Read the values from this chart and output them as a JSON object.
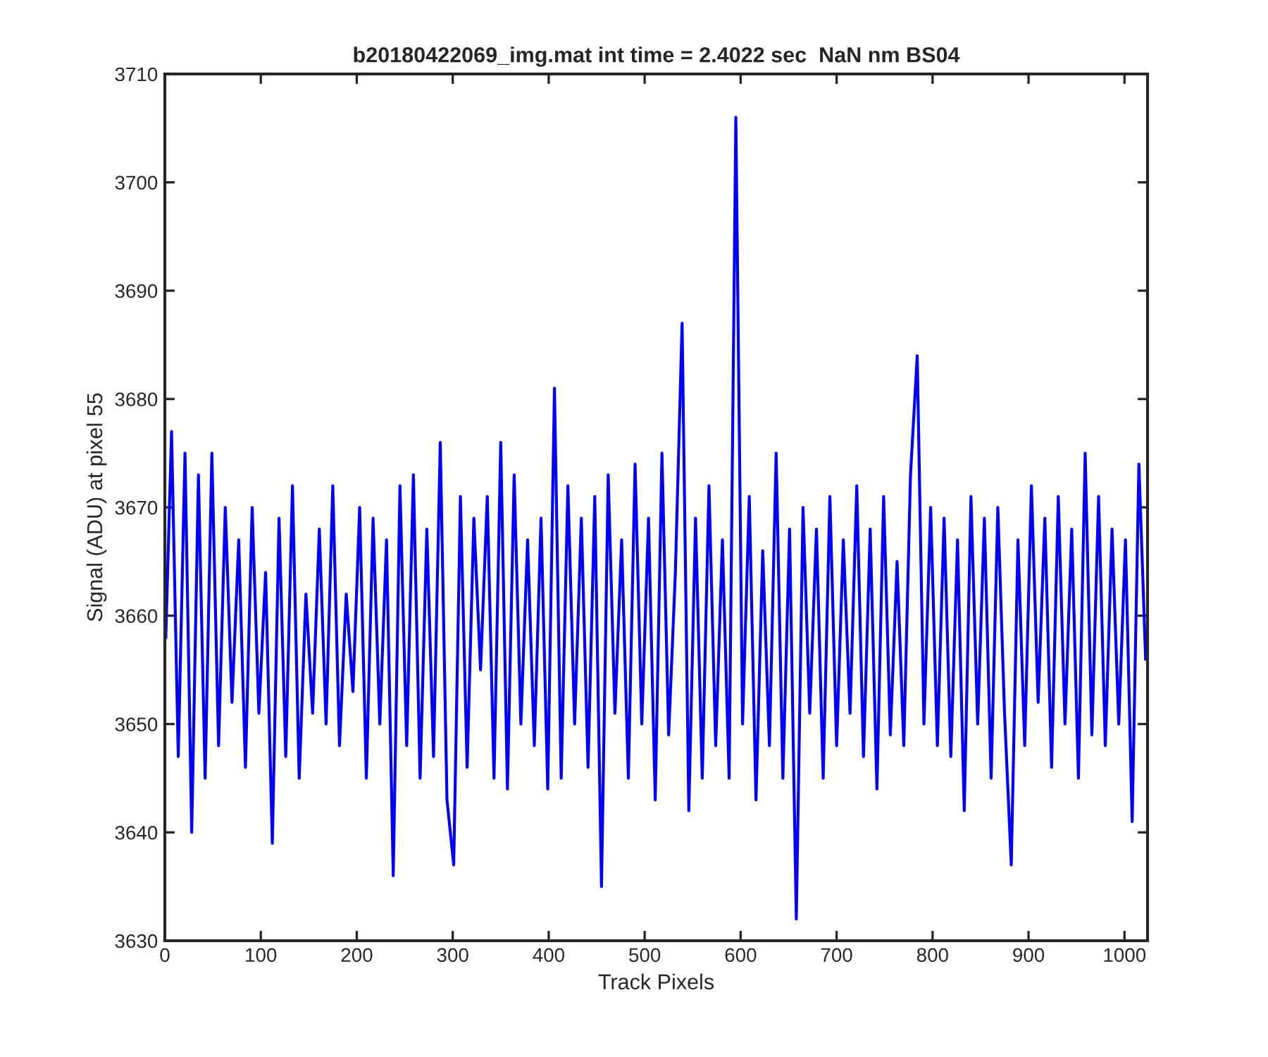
{
  "chart_data": {
    "type": "line",
    "title": "b20180422069_img.mat int time = 2.4022 sec  NaN nm BS04",
    "xlabel": "Track Pixels",
    "ylabel": "Signal (ADU) at pixel 55",
    "x": [
      1,
      7,
      14,
      21,
      28,
      35,
      42,
      49,
      56,
      63,
      70,
      77,
      84,
      91,
      98,
      105,
      112,
      119,
      126,
      133,
      140,
      147,
      154,
      161,
      168,
      175,
      182,
      189,
      196,
      203,
      210,
      217,
      224,
      231,
      238,
      245,
      252,
      259,
      266,
      273,
      280,
      287,
      294,
      301,
      308,
      315,
      322,
      329,
      336,
      343,
      350,
      357,
      364,
      371,
      378,
      385,
      392,
      399,
      406,
      413,
      420,
      427,
      434,
      441,
      448,
      455,
      462,
      469,
      476,
      483,
      490,
      497,
      504,
      511,
      518,
      525,
      532,
      539,
      546,
      553,
      560,
      567,
      574,
      581,
      588,
      595,
      602,
      609,
      616,
      623,
      630,
      637,
      644,
      651,
      658,
      665,
      672,
      679,
      686,
      693,
      700,
      707,
      714,
      721,
      728,
      735,
      742,
      749,
      756,
      763,
      770,
      777,
      784,
      791,
      798,
      805,
      812,
      819,
      826,
      833,
      840,
      847,
      854,
      861,
      868,
      875,
      882,
      889,
      896,
      903,
      910,
      917,
      924,
      931,
      938,
      945,
      952,
      959,
      966,
      973,
      980,
      987,
      994,
      1001,
      1008,
      1015,
      1022
    ],
    "series": [
      {
        "color": "#0000ff",
        "values": [
          3658,
          3677,
          3647,
          3675,
          3640,
          3673,
          3645,
          3675,
          3648,
          3670,
          3652,
          3667,
          3646,
          3670,
          3651,
          3664,
          3639,
          3669,
          3647,
          3672,
          3645,
          3662,
          3651,
          3668,
          3650,
          3672,
          3648,
          3662,
          3653,
          3670,
          3645,
          3669,
          3650,
          3667,
          3636,
          3672,
          3648,
          3673,
          3645,
          3668,
          3647,
          3676,
          3643,
          3637,
          3671,
          3646,
          3669,
          3655,
          3671,
          3645,
          3676,
          3644,
          3673,
          3650,
          3667,
          3648,
          3669,
          3644,
          3681,
          3645,
          3672,
          3650,
          3669,
          3646,
          3671,
          3635,
          3673,
          3651,
          3667,
          3645,
          3674,
          3650,
          3669,
          3643,
          3675,
          3649,
          3664,
          3687,
          3642,
          3669,
          3645,
          3672,
          3648,
          3667,
          3645,
          3706,
          3650,
          3671,
          3643,
          3666,
          3648,
          3675,
          3645,
          3668,
          3632,
          3670,
          3651,
          3668,
          3645,
          3671,
          3648,
          3667,
          3651,
          3672,
          3647,
          3668,
          3644,
          3671,
          3649,
          3665,
          3648,
          3673,
          3684,
          3650,
          3670,
          3648,
          3669,
          3647,
          3667,
          3642,
          3671,
          3650,
          3669,
          3645,
          3670,
          3651,
          3637,
          3667,
          3648,
          3672,
          3652,
          3669,
          3646,
          3671,
          3650,
          3668,
          3645,
          3675,
          3649,
          3671,
          3648,
          3668,
          3650,
          3667,
          3641,
          3674,
          3656
        ]
      }
    ],
    "xlim": [
      0,
      1024
    ],
    "ylim": [
      3630,
      3710
    ],
    "xticks": [
      0,
      100,
      200,
      300,
      400,
      500,
      600,
      700,
      800,
      900,
      1000
    ],
    "yticks": [
      3630,
      3640,
      3650,
      3660,
      3670,
      3680,
      3690,
      3700,
      3710
    ],
    "grid": false,
    "marker": "none",
    "line_style": "solid"
  }
}
